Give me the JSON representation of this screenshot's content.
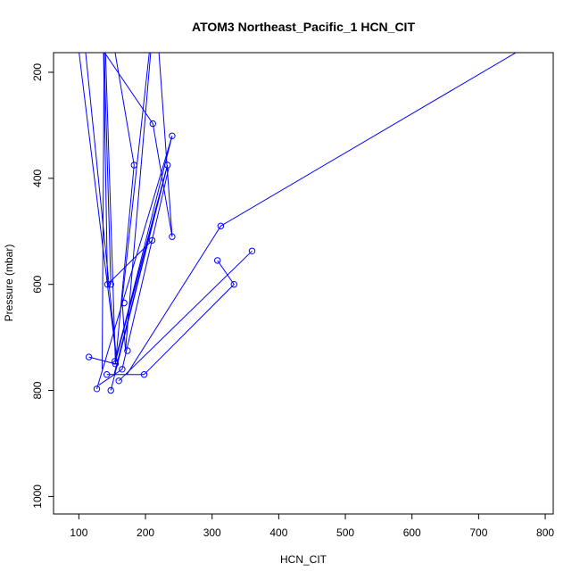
{
  "chart_data": {
    "type": "line",
    "title": "ATOM3 Northeast_Pacific_1 HCN_CIT",
    "xlabel": "HCN_CIT",
    "ylabel": "Pressure (mbar)",
    "xlim": [
      62,
      812
    ],
    "ylim": [
      1033,
      163
    ],
    "y_reversed": true,
    "x_ticks": [
      100,
      200,
      300,
      400,
      500,
      600,
      700,
      800
    ],
    "y_ticks": [
      200,
      400,
      600,
      800,
      1000
    ],
    "color": "#0000ff",
    "series": [
      {
        "segments": [
          [
            110,
            160
          ],
          [
            157,
            745
          ],
          [
            100,
            160
          ]
        ]
      },
      {
        "segments": [
          [
            138,
            160
          ],
          [
            148,
            600
          ],
          [
            138,
            160
          ],
          [
            135,
            760
          ]
        ]
      },
      {
        "segments": [
          [
            206,
            160
          ],
          [
            165,
            630
          ],
          [
            170,
            725
          ],
          [
            208,
            160
          ]
        ]
      },
      {
        "segments": [
          [
            154,
            160
          ],
          [
            183,
            375
          ],
          [
            155,
            750
          ],
          [
            140,
            160
          ]
        ]
      },
      {
        "segments": [
          [
            137,
            160
          ],
          [
            211,
            297
          ],
          [
            240,
            510
          ],
          [
            220,
            160
          ]
        ]
      },
      {
        "segments": [
          [
            137,
            160
          ],
          [
            143,
            600
          ],
          [
            210,
            517
          ]
        ]
      },
      {
        "segments": [
          [
            154,
            745
          ],
          [
            233,
            375
          ],
          [
            153,
            770
          ]
        ]
      },
      {
        "segments": [
          [
            155,
            745
          ],
          [
            240,
            320
          ],
          [
            127,
            797
          ]
        ]
      },
      {
        "segments": [
          [
            155,
            745
          ],
          [
            233,
            375
          ],
          [
            148,
            800
          ]
        ]
      },
      {
        "segments": [
          [
            115,
            737
          ],
          [
            155,
            750
          ]
        ]
      },
      {
        "segments": [
          [
            142,
            770
          ],
          [
            198,
            770
          ]
        ]
      },
      {
        "segments": [
          [
            172,
            770
          ],
          [
            313,
            490
          ],
          [
            760,
            160
          ]
        ]
      },
      {
        "segments": [
          [
            198,
            770
          ],
          [
            333,
            600
          ],
          [
            308,
            555
          ]
        ]
      },
      {
        "segments": [
          [
            160,
            782
          ],
          [
            360,
            537
          ]
        ]
      },
      {
        "segments": [
          [
            165,
            760
          ],
          [
            235,
            380
          ]
        ]
      },
      {
        "segments": [
          [
            130,
            790
          ],
          [
            165,
            760
          ]
        ]
      }
    ],
    "points": [
      [
        211,
        297
      ],
      [
        240,
        320
      ],
      [
        233,
        375
      ],
      [
        183,
        375
      ],
      [
        313,
        490
      ],
      [
        240,
        510
      ],
      [
        210,
        517
      ],
      [
        360,
        537
      ],
      [
        308,
        555
      ],
      [
        333,
        600
      ],
      [
        143,
        600
      ],
      [
        148,
        600
      ],
      [
        168,
        635
      ],
      [
        173,
        725
      ],
      [
        115,
        737
      ],
      [
        155,
        750
      ],
      [
        154,
        745
      ],
      [
        142,
        770
      ],
      [
        198,
        770
      ],
      [
        165,
        760
      ],
      [
        160,
        782
      ],
      [
        127,
        797
      ],
      [
        148,
        800
      ]
    ]
  }
}
